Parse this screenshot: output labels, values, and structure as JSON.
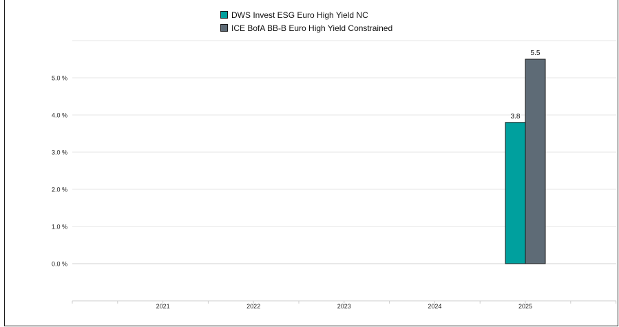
{
  "chart_data": {
    "type": "bar",
    "categories": [
      "2021",
      "2022",
      "2023",
      "2024",
      "2025"
    ],
    "series": [
      {
        "name": "DWS Invest ESG Euro High Yield NC",
        "color": "#00a09e",
        "values": [
          null,
          null,
          null,
          null,
          3.8
        ],
        "labels": [
          "",
          "",
          "",
          "",
          "3.8"
        ]
      },
      {
        "name": "ICE BofA BB-B Euro High Yield Constrained",
        "color": "#5e6b76",
        "values": [
          null,
          null,
          null,
          null,
          5.5
        ],
        "labels": [
          "",
          "",
          "",
          "",
          "5.5"
        ]
      }
    ],
    "yticks": [
      "0.0 %",
      "1.0 %",
      "2.0 %",
      "3.0 %",
      "4.0 %",
      "5.0 %"
    ],
    "ylim": [
      0,
      6
    ],
    "grid": true,
    "legend_position": "top-center"
  }
}
